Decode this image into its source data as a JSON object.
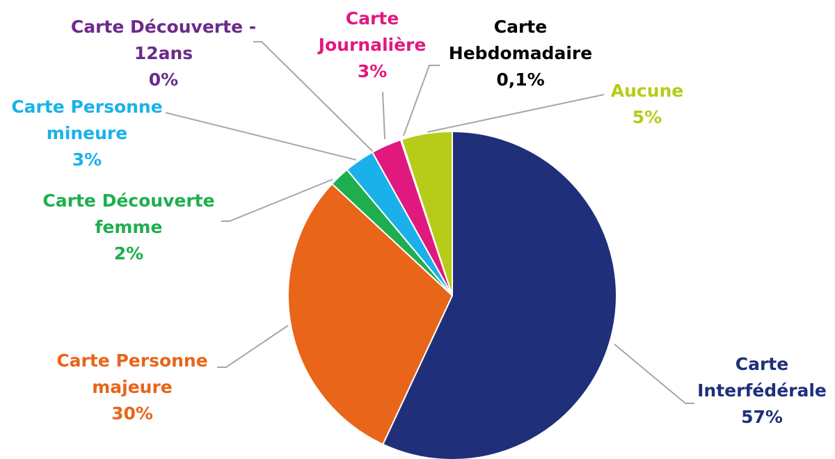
{
  "chart_data": {
    "type": "pie",
    "categories": [
      "Carte\nInterfédérale",
      "Carte Personne\nmajeure",
      "Carte Découverte\nfemme",
      "Carte Personne\nmineure",
      "Carte Découverte -\n12ans",
      "Carte\nJournalière",
      "Carte\nHebdomadaire",
      "Aucune"
    ],
    "values": [
      57,
      30,
      2,
      3,
      0,
      3,
      0.1,
      5
    ],
    "value_labels": [
      "57%",
      "30%",
      "2%",
      "3%",
      "0%",
      "3%",
      "0,1%",
      "5%"
    ],
    "colors": [
      "#1f2f7a",
      "#e8651a",
      "#1fae4e",
      "#1ab1ea",
      "#6b2a8c",
      "#e0197f",
      "#000000",
      "#b6cc18"
    ]
  }
}
